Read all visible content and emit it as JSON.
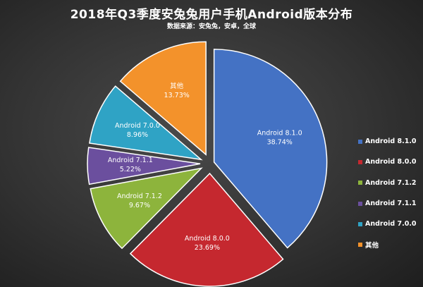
{
  "chart_data": {
    "type": "pie",
    "title": "2018年Q3季度安兔兔用户手机Android版本分布",
    "subtitle": "数据来源：安兔兔，安卓，全球",
    "slices": [
      {
        "label": "Android 8.1.0",
        "value": 38.74,
        "display": "38.74%",
        "color": "#4472c4"
      },
      {
        "label": "Android 8.0.0",
        "value": 23.69,
        "display": "23.69%",
        "color": "#c5282f"
      },
      {
        "label": "Android 7.1.2",
        "value": 9.67,
        "display": "9.67%",
        "color": "#8db43c"
      },
      {
        "label": "Android 7.1.1",
        "value": 5.22,
        "display": "5.22%",
        "color": "#6b4f9e"
      },
      {
        "label": "Android 7.0.0",
        "value": 8.96,
        "display": "8.96%",
        "color": "#2fa3c5"
      },
      {
        "label": "其他",
        "value": 13.73,
        "display": "13.73%",
        "color": "#f3922b"
      }
    ],
    "legend_position": "right"
  }
}
